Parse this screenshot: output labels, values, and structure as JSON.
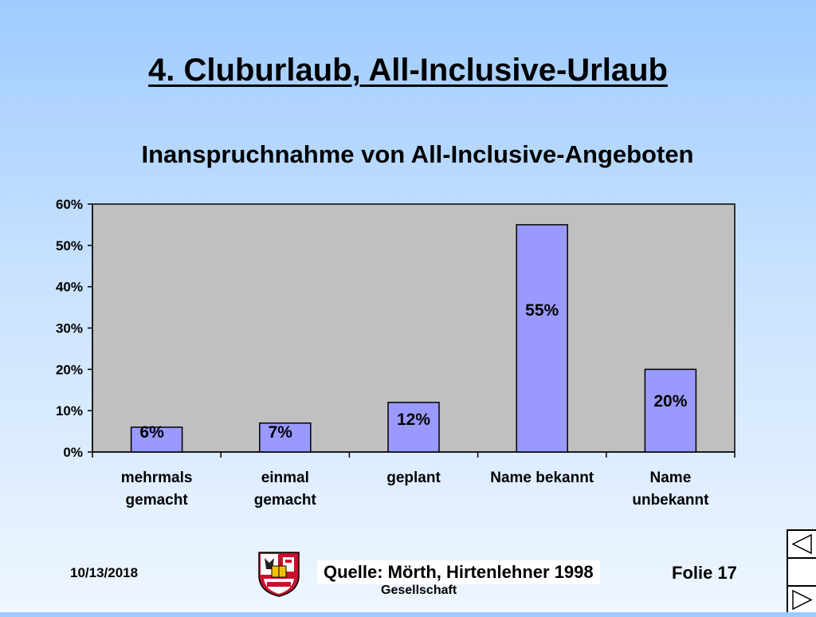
{
  "slide": {
    "title": "4. Cluburlaub, All-Inclusive-Urlaub"
  },
  "chart_data": {
    "type": "bar",
    "title": "Inanspruchnahme von All-Inclusive-Angeboten",
    "categories": [
      [
        "mehrmals",
        "gemacht"
      ],
      [
        "einmal",
        "gemacht"
      ],
      [
        "geplant"
      ],
      [
        "Name bekannt"
      ],
      [
        "Name",
        "unbekannt"
      ]
    ],
    "values": [
      6,
      7,
      12,
      55,
      20
    ],
    "value_labels": [
      "6%",
      "7%",
      "12%",
      "55%",
      "20%"
    ],
    "ylim": [
      0,
      60
    ],
    "yticks": [
      "0%",
      "10%",
      "20%",
      "30%",
      "40%",
      "50%",
      "60%"
    ],
    "grid": false,
    "plot_background": "#c0c0c0",
    "bar_color": "#9999ff"
  },
  "footer": {
    "date": "10/13/2018",
    "org_partial": "Gesellschaft",
    "source": "Quelle: Mörth, Hirtenlehner 1998",
    "slide_number": "Folie 17"
  },
  "nav": {
    "icons": [
      "prev-slide-icon",
      "next-slide-icon"
    ]
  }
}
